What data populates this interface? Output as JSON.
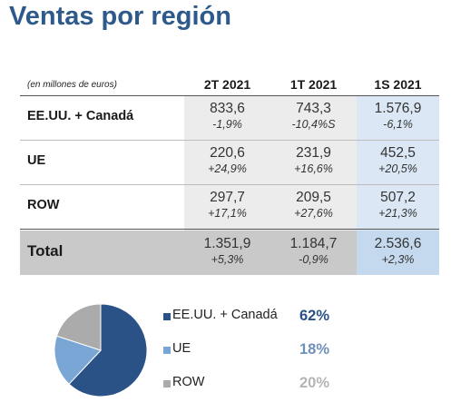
{
  "title": "Ventas por región",
  "table": {
    "unit_note": "(en millones de euros)",
    "columns": [
      "2T 2021",
      "1T 2021",
      "1S 2021"
    ],
    "rows": [
      {
        "label": "EE.UU. + Canadá",
        "cells": [
          {
            "value": "833,6",
            "change": "-1,9%"
          },
          {
            "value": "743,3",
            "change": "-10,4%S"
          },
          {
            "value": "1.576,9",
            "change": "-6,1%"
          }
        ]
      },
      {
        "label": "UE",
        "cells": [
          {
            "value": "220,6",
            "change": "+24,9%"
          },
          {
            "value": "231,9",
            "change": "+16,6%"
          },
          {
            "value": "452,5",
            "change": "+20,5%"
          }
        ]
      },
      {
        "label": "ROW",
        "cells": [
          {
            "value": "297,7",
            "change": "+17,1%"
          },
          {
            "value": "209,5",
            "change": "+27,6%"
          },
          {
            "value": "507,2",
            "change": "+21,3%"
          }
        ]
      }
    ],
    "total": {
      "label": "Total",
      "cells": [
        {
          "value": "1.351,9",
          "change": "+5,3%"
        },
        {
          "value": "1.184,7",
          "change": "-0,9%"
        },
        {
          "value": "2.536,6",
          "change": "+2,3%"
        }
      ]
    }
  },
  "chart_data": {
    "type": "pie",
    "title": "",
    "categories": [
      "EE.UU. + Canadá",
      "UE",
      "ROW"
    ],
    "values": [
      62,
      18,
      20
    ],
    "labels": [
      "62%",
      "18%",
      "20%"
    ],
    "colors": [
      "#2a5286",
      "#7aa6d6",
      "#ababab"
    ],
    "label_colors": [
      "#2a5286",
      "#6f90b8",
      "#b5b5b5"
    ],
    "legend": "right"
  }
}
